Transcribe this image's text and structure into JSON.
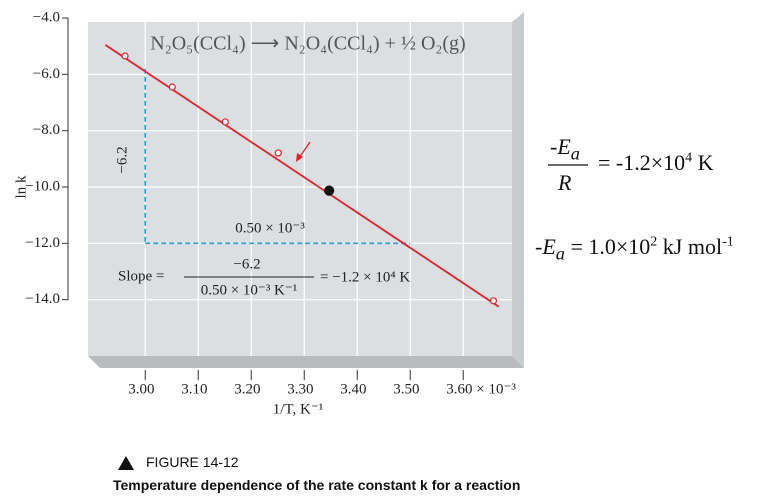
{
  "chart_data": {
    "type": "scatter",
    "title": "N₂O₅(CCl₄) ⟶ N₂O₄(CCl₄) + ½ O₂(g)",
    "x_label": "1/T, K⁻¹",
    "y_label": "ln k",
    "xlim": [
      2.892,
      3.692
    ],
    "ylim": [
      -16,
      -4
    ],
    "xticks": [
      {
        "value": 3.0,
        "label": "3.00"
      },
      {
        "value": 3.1,
        "label": "3.10"
      },
      {
        "value": 3.2,
        "label": "3.20"
      },
      {
        "value": 3.3,
        "label": "3.30"
      },
      {
        "value": 3.4,
        "label": "3.40"
      },
      {
        "value": 3.5,
        "label": "3.50"
      },
      {
        "value": 3.6,
        "label": "3.60 × 10⁻³"
      }
    ],
    "yticks": [
      {
        "value": -4,
        "label": "−4.0"
      },
      {
        "value": -6,
        "label": "−6.0"
      },
      {
        "value": -8,
        "label": "−8.0"
      },
      {
        "value": -10,
        "label": "−10.0"
      },
      {
        "value": -12,
        "label": "−12.0"
      },
      {
        "value": -14,
        "label": "−14.0"
      }
    ],
    "grid": true,
    "series": [
      {
        "style": "line",
        "color": "#e3202b",
        "x": [
          2.925,
          3.667
        ],
        "values": [
          -4.96,
          -14.25
        ]
      },
      {
        "style": "open-marker",
        "color": "#e3202b",
        "x": [
          2.962,
          3.051,
          3.151,
          3.251,
          3.657
        ],
        "values": [
          -5.35,
          -6.45,
          -7.69,
          -8.79,
          -14.04
        ]
      },
      {
        "style": "filled-marker",
        "color": "#111111",
        "x": [
          3.347
        ],
        "values": [
          -10.13
        ]
      }
    ],
    "slope_triangle": {
      "color": "#2a9ee0",
      "x": [
        3.0,
        3.5
      ],
      "y": [
        -5.8,
        -12.0
      ],
      "rise_label": "−6.2",
      "run_label": "0.50 × 10⁻³",
      "slope_prefix": "Slope =",
      "slope_numerator": "−6.2",
      "slope_denominator": "0.50 × 10⁻³ K⁻¹",
      "slope_result": "= −1.2 × 10⁴ K"
    }
  },
  "equations": {
    "ea_over_r": {
      "numerator": "-E",
      "subscript": "a",
      "denominator": "R",
      "rhs": "= -1.2×10",
      "rhs_sup": "4",
      "rhs_unit": " K"
    },
    "ea": {
      "lhs": "-E",
      "subscript": "a",
      "rhs": " = 1.0×10",
      "rhs_sup": "2",
      "rhs_unit": " kJ mol",
      "unit_sup": "-1"
    }
  },
  "figure": {
    "label": "FIGURE 14-12",
    "caption": "Temperature dependence of the rate constant k for a reaction"
  }
}
